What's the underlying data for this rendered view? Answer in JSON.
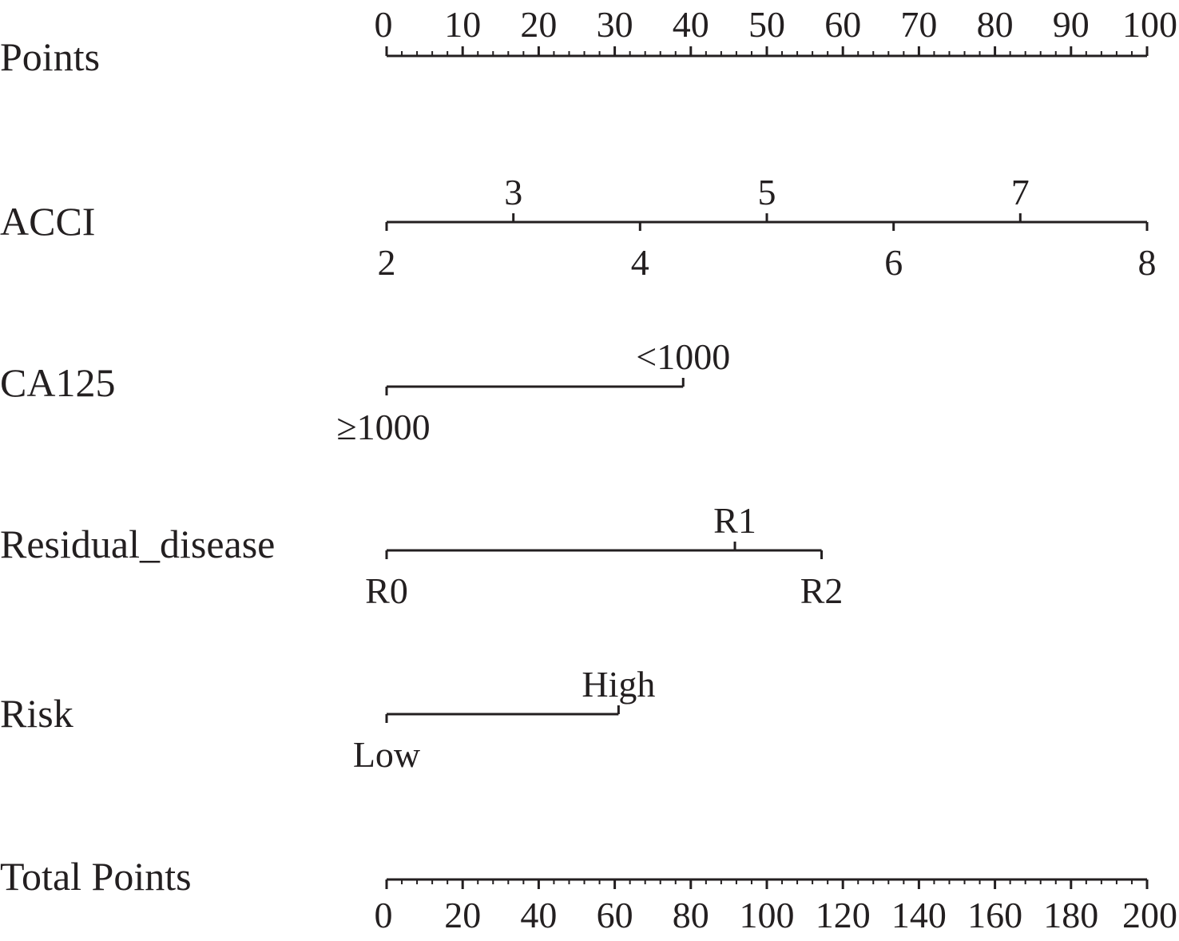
{
  "chart_data": {
    "type": "nomogram",
    "rows": [
      {
        "key": "points",
        "label": "Points",
        "kind": "scale",
        "range": [
          0,
          100
        ],
        "major": [
          0,
          10,
          20,
          30,
          40,
          50,
          60,
          70,
          80,
          90,
          100
        ],
        "minor_step": 2,
        "labels_position": "above"
      },
      {
        "key": "acci",
        "label": "ACCI",
        "kind": "numeric",
        "ticks": [
          {
            "label": "2",
            "value": 2,
            "points": 0,
            "side": "below"
          },
          {
            "label": "3",
            "value": 3,
            "points": 16.67,
            "side": "above"
          },
          {
            "label": "4",
            "value": 4,
            "points": 33.33,
            "side": "below"
          },
          {
            "label": "5",
            "value": 5,
            "points": 50,
            "side": "above"
          },
          {
            "label": "6",
            "value": 6,
            "points": 66.67,
            "side": "below"
          },
          {
            "label": "7",
            "value": 7,
            "points": 83.33,
            "side": "above"
          },
          {
            "label": "8",
            "value": 8,
            "points": 100,
            "side": "below"
          }
        ]
      },
      {
        "key": "ca125",
        "label": "CA125",
        "kind": "categorical",
        "ticks": [
          {
            "label": "≥1000",
            "points": 0,
            "side": "below"
          },
          {
            "label": "<1000",
            "points": 39,
            "side": "above"
          }
        ]
      },
      {
        "key": "residual",
        "label": "Residual_disease",
        "kind": "categorical",
        "ticks": [
          {
            "label": "R0",
            "points": 0,
            "side": "below"
          },
          {
            "label": "R1",
            "points": 45.8,
            "side": "above"
          },
          {
            "label": "R2",
            "points": 57.2,
            "side": "below"
          }
        ]
      },
      {
        "key": "risk",
        "label": "Risk",
        "kind": "categorical",
        "ticks": [
          {
            "label": "Low",
            "points": 0,
            "side": "below"
          },
          {
            "label": "High",
            "points": 30.5,
            "side": "above"
          }
        ]
      },
      {
        "key": "total",
        "label": "Total Points",
        "kind": "scale",
        "range": [
          0,
          200
        ],
        "major": [
          0,
          20,
          40,
          60,
          80,
          100,
          120,
          140,
          160,
          180,
          200
        ],
        "minor_step": 4,
        "labels_position": "below"
      }
    ]
  },
  "style": {
    "ink_color": "#231f20",
    "background": "#ffffff"
  }
}
